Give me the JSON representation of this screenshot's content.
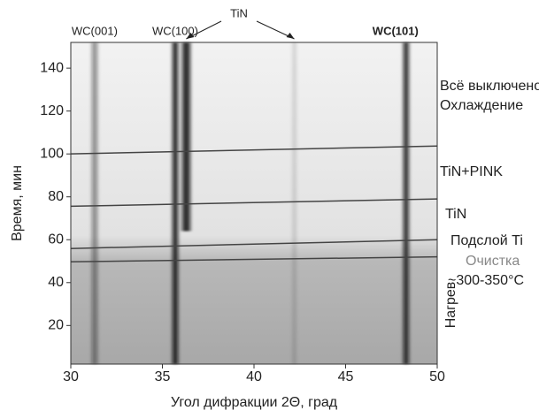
{
  "chart_data": {
    "type": "xrdmap",
    "x_label": "Угол дифракции 2Θ, град",
    "y_label": "Время, мин",
    "xlim": [
      30,
      50
    ],
    "xticks": [
      30,
      35,
      40,
      45,
      50
    ],
    "ylim": [
      2,
      152
    ],
    "yticks": [
      20,
      40,
      60,
      80,
      100,
      120,
      140
    ],
    "peaks": [
      {
        "name": "WC(001)",
        "position": 31.3,
        "from": 2,
        "to": 152,
        "intensity": 0.45
      },
      {
        "name": "WC(100)",
        "position": 35.7,
        "from": 2,
        "to": 152,
        "intensity": 0.9
      },
      {
        "name": "WC(101)",
        "position": 48.3,
        "from": 2,
        "to": 152,
        "intensity": 0.85
      }
    ],
    "annotation": {
      "text": "TiN",
      "peaks": [
        {
          "position": 36.3,
          "from": 64,
          "to": 152,
          "intensity": 0.85
        },
        {
          "position": 42.2,
          "from": 2,
          "to": 152,
          "intensity": 0.15
        }
      ]
    },
    "boundaries": [
      {
        "start": 100,
        "end": 103.7
      },
      {
        "start": 75.6,
        "end": 79
      },
      {
        "start": 55.9,
        "end": 60
      },
      {
        "start": 49.7,
        "end": 52
      }
    ],
    "stages": [
      "Всё выключено",
      "Охлаждение",
      "TiN+PINK",
      "TiN",
      "Подслой Ti",
      "Очистка",
      "~300-350°C",
      "Нагрев"
    ]
  }
}
